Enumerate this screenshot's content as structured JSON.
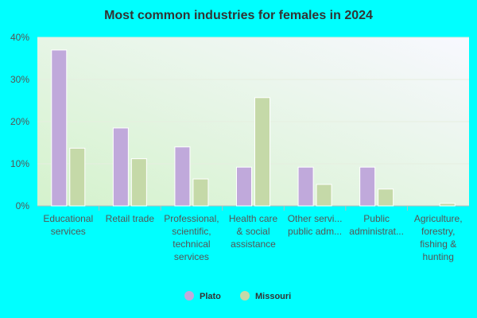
{
  "chart_data": {
    "type": "bar",
    "title": "Most common industries for females in 2024",
    "categories": [
      [
        "Educational",
        "services"
      ],
      [
        "Retail trade"
      ],
      [
        "Professional,",
        "scientific,",
        "technical",
        "services"
      ],
      [
        "Health care",
        "& social",
        "assistance"
      ],
      [
        "Other servi...",
        "public adm..."
      ],
      [
        "Public",
        "administrat..."
      ],
      [
        "Agriculture,",
        "forestry,",
        "fishing &",
        "hunting"
      ]
    ],
    "series": [
      {
        "name": "Plato",
        "color": "#c0a9db",
        "values": [
          37,
          18.5,
          14,
          9.2,
          9.2,
          9.2,
          0
        ]
      },
      {
        "name": "Missouri",
        "color": "#c5d9a8",
        "values": [
          13.7,
          11.2,
          6.4,
          25.7,
          5.1,
          4.0,
          0.6
        ]
      }
    ],
    "ylim": [
      0,
      40
    ],
    "yticks": [
      {
        "value": 0,
        "label": "0%"
      },
      {
        "value": 10,
        "label": "10%"
      },
      {
        "value": 20,
        "label": "20%"
      },
      {
        "value": 30,
        "label": "30%"
      },
      {
        "value": 40,
        "label": "40%"
      }
    ],
    "grid": true
  }
}
